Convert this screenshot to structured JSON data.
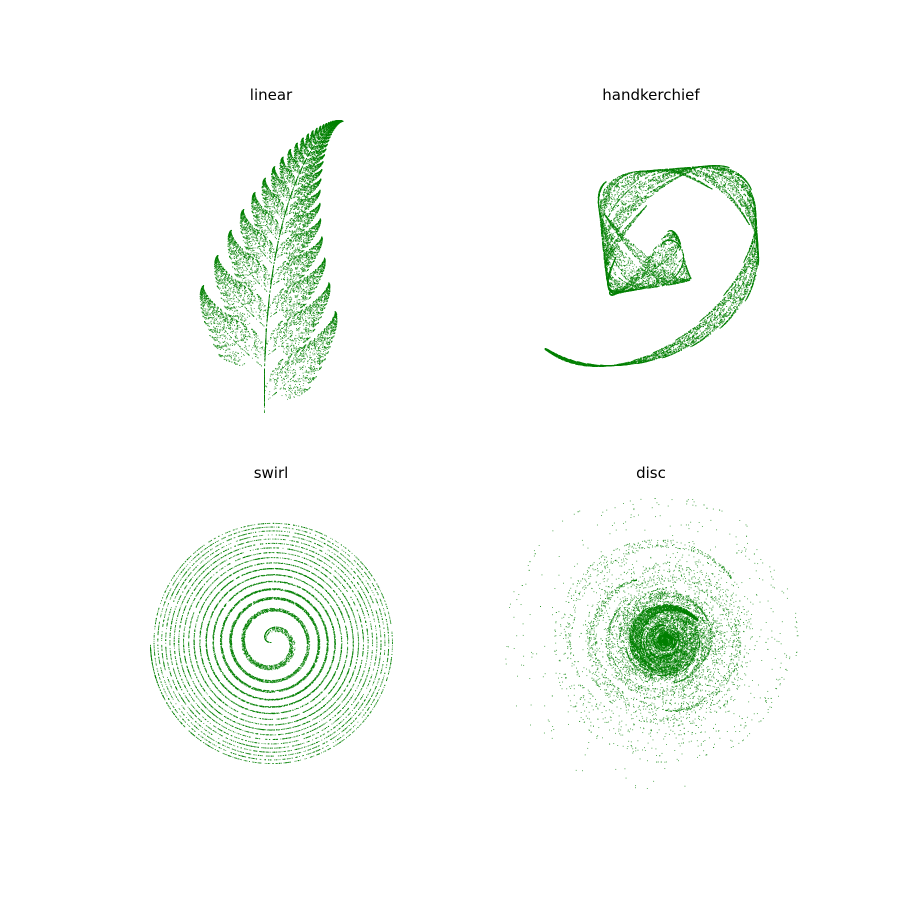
{
  "figure": {
    "background": "#ffffff",
    "point_color": "#008000"
  },
  "chart_data": [
    {
      "type": "scatter",
      "title": "linear",
      "xlabel": "",
      "ylabel": "",
      "axes_visible": false,
      "grid": false,
      "transform": "linear",
      "series": [
        {
          "points": "barnsley-fern attractor",
          "color": "#008000",
          "approx_count": 20000
        }
      ]
    },
    {
      "type": "scatter",
      "title": "handkerchief",
      "xlabel": "",
      "ylabel": "",
      "axes_visible": false,
      "grid": false,
      "transform": "handkerchief",
      "series": [
        {
          "points": "barnsley-fern attractor",
          "color": "#008000",
          "approx_count": 20000
        }
      ]
    },
    {
      "type": "scatter",
      "title": "swirl",
      "xlabel": "",
      "ylabel": "",
      "axes_visible": false,
      "grid": false,
      "transform": "swirl",
      "series": [
        {
          "points": "barnsley-fern attractor",
          "color": "#008000",
          "approx_count": 20000
        }
      ]
    },
    {
      "type": "scatter",
      "title": "disc",
      "xlabel": "",
      "ylabel": "",
      "axes_visible": false,
      "grid": false,
      "transform": "disc",
      "series": [
        {
          "points": "barnsley-fern attractor",
          "color": "#008000",
          "approx_count": 20000
        }
      ]
    }
  ]
}
